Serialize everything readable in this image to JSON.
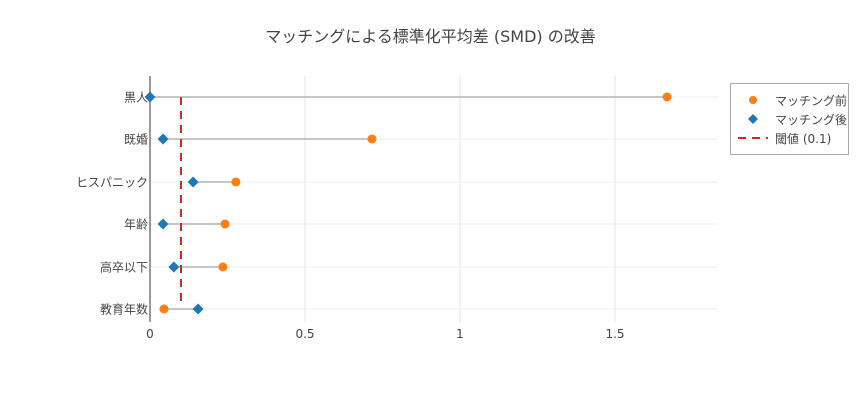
{
  "chart_data": {
    "type": "scatter",
    "subtype": "dumbbell",
    "title": "マッチングによる標準化平均差 (SMD) の改善",
    "xlabel": "",
    "ylabel": "",
    "xlim": [
      0,
      1.83
    ],
    "x_ticks": [
      "0",
      "0.5",
      "1",
      "1.5"
    ],
    "x_tick_values": [
      0,
      0.5,
      1,
      1.5
    ],
    "categories": [
      "黒人",
      "既婚",
      "ヒスパニック",
      "年齢",
      "高卒以下",
      "教育年数"
    ],
    "series": [
      {
        "name": "マッチング前",
        "marker": "circle",
        "color": "#ff7f0e",
        "values": [
          1.668,
          0.716,
          0.277,
          0.242,
          0.235,
          0.045
        ]
      },
      {
        "name": "マッチング後",
        "marker": "diamond",
        "color": "#1f77b4",
        "values": [
          0.0,
          0.042,
          0.139,
          0.042,
          0.077,
          0.155
        ]
      }
    ],
    "threshold": {
      "name": "閾値 (0.1)",
      "value": 0.1,
      "color": "#d62728",
      "style": "dashed"
    },
    "grid": true,
    "legend_position": "right-top"
  },
  "legend": {
    "items": [
      "マッチング前",
      "マッチング後",
      "閾値 (0.1)"
    ]
  }
}
